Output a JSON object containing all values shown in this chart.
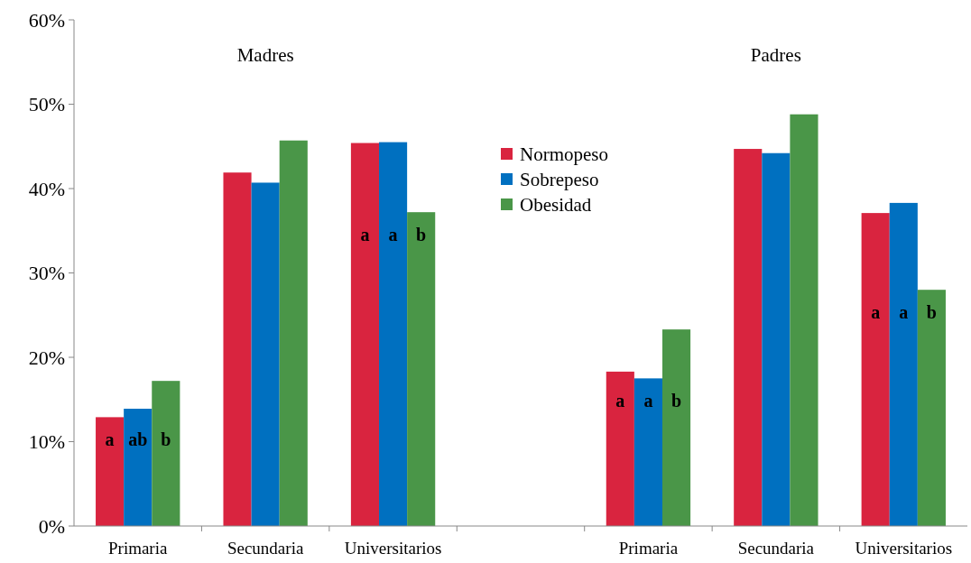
{
  "chart_data": {
    "type": "bar",
    "categories": [
      "Primaria",
      "Secundaria",
      "Universitarios",
      null,
      "Primaria",
      "Secundaria",
      "Universitarios"
    ],
    "series": [
      {
        "name": "Normopeso",
        "color": "#d9243f",
        "values": [
          12.9,
          41.9,
          45.4,
          null,
          18.3,
          44.7,
          37.1
        ],
        "value_labels": [
          "a",
          null,
          "a",
          null,
          "a",
          null,
          "a"
        ]
      },
      {
        "name": "Sobrepeso",
        "color": "#0070c0",
        "values": [
          13.9,
          40.7,
          45.5,
          null,
          17.5,
          44.2,
          38.3
        ],
        "value_labels": [
          "ab",
          null,
          "a",
          null,
          "a",
          null,
          "a"
        ]
      },
      {
        "name": "Obesidad",
        "color": "#4a9648",
        "values": [
          17.2,
          45.7,
          37.2,
          null,
          23.3,
          48.8,
          28.0
        ],
        "value_labels": [
          "b",
          null,
          "b",
          null,
          "b",
          null,
          "b"
        ]
      }
    ],
    "ylim": [
      0,
      60
    ],
    "yticks": [
      {
        "value": 0,
        "label": "0%"
      },
      {
        "value": 10,
        "label": "10%"
      },
      {
        "value": 20,
        "label": "20%"
      },
      {
        "value": 30,
        "label": "30%"
      },
      {
        "value": 40,
        "label": "40%"
      },
      {
        "value": 50,
        "label": "50%"
      },
      {
        "value": 60,
        "label": "60%"
      }
    ],
    "annotations": [
      "Madres",
      "Padres"
    ],
    "legend": "top",
    "grid": false
  }
}
